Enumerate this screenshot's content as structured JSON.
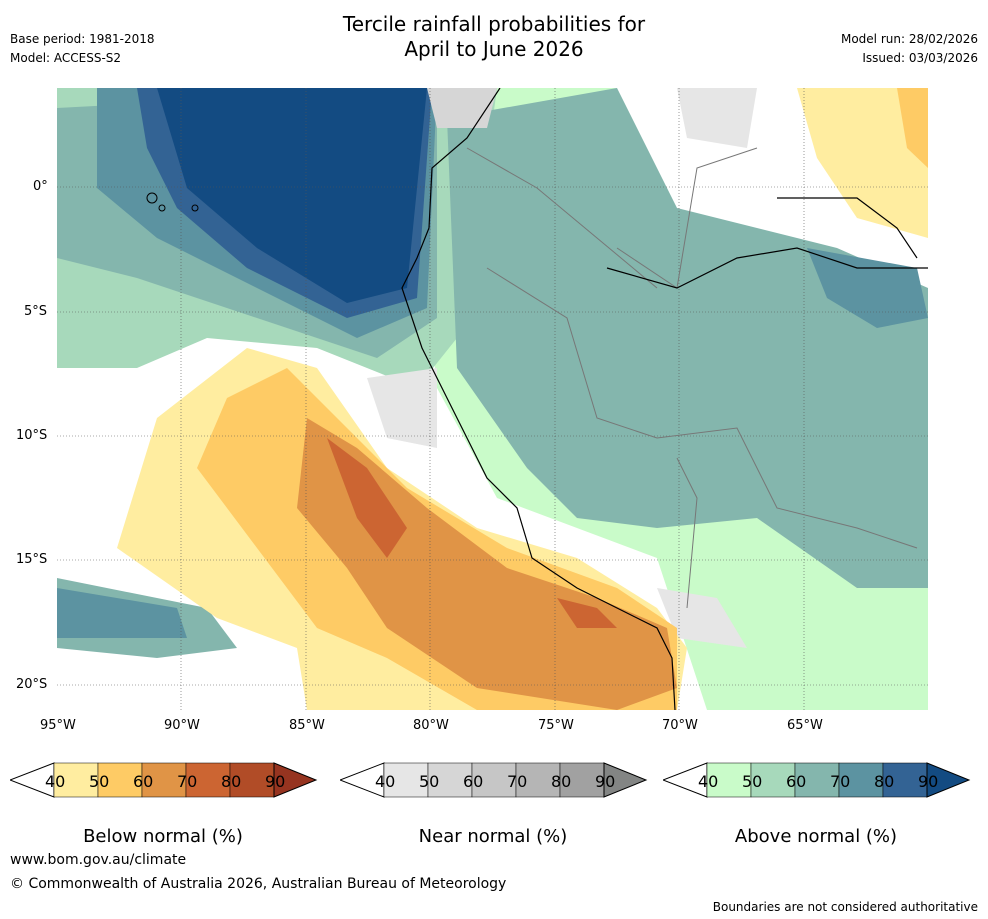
{
  "header": {
    "title_line1": "Tercile rainfall probabilities for",
    "title_line2": "April to June 2026",
    "base_period": "Base period: 1981-2018",
    "model": "Model: ACCESS-S2",
    "model_run": "Model run: 28/02/2026",
    "issued": "Issued: 03/03/2026"
  },
  "map": {
    "lat_labels": [
      "0°",
      "5°S",
      "10°S",
      "15°S",
      "20°S"
    ],
    "lon_labels": [
      "95°W",
      "90°W",
      "85°W",
      "80°W",
      "75°W",
      "70°W",
      "65°W"
    ]
  },
  "colorbars": [
    {
      "label": "Below normal (%)",
      "ticks": [
        "40",
        "50",
        "60",
        "70",
        "80",
        "90"
      ],
      "colors": [
        "#ffffff",
        "#ffeda0",
        "#fecb65",
        "#e09446",
        "#cc6532",
        "#b14c27",
        "#963420"
      ]
    },
    {
      "label": "Near normal (%)",
      "ticks": [
        "40",
        "50",
        "60",
        "70",
        "80",
        "90"
      ],
      "colors": [
        "#ffffff",
        "#e6e6e6",
        "#d6d6d6",
        "#c6c6c6",
        "#b5b5b5",
        "#a1a1a1",
        "#838584"
      ]
    },
    {
      "label": "Above normal (%)",
      "ticks": [
        "40",
        "50",
        "60",
        "70",
        "80",
        "90"
      ],
      "colors": [
        "#ffffff",
        "#c9fbc9",
        "#a7d9bb",
        "#84b6ad",
        "#5c93a1",
        "#336394",
        "#134b82"
      ]
    }
  ],
  "footer": {
    "url": "www.bom.gov.au/climate",
    "copyright": "© Commonwealth of Australia 2026, Australian Bureau of Meteorology",
    "disclaimer": "Boundaries are not considered authoritative"
  }
}
